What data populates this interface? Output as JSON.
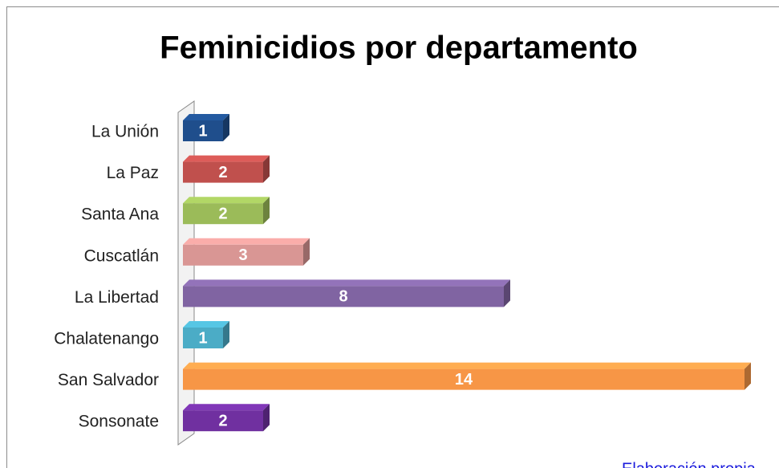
{
  "chart_data": {
    "type": "bar",
    "orientation": "horizontal",
    "title": "Feminicidios por departamento",
    "categories": [
      "La Unión",
      "La Paz",
      "Santa Ana",
      "Cuscatlán",
      "La Libertad",
      "Chalatenango",
      "San Salvador",
      "Sonsonate"
    ],
    "values": [
      1,
      2,
      2,
      3,
      8,
      1,
      14,
      2
    ],
    "colors": [
      "#1f4e8c",
      "#c0504d",
      "#9bbb59",
      "#d99694",
      "#8064a2",
      "#4bacc6",
      "#f79646",
      "#7030a0"
    ],
    "data_labels": true,
    "source": "Elaboración propia"
  }
}
